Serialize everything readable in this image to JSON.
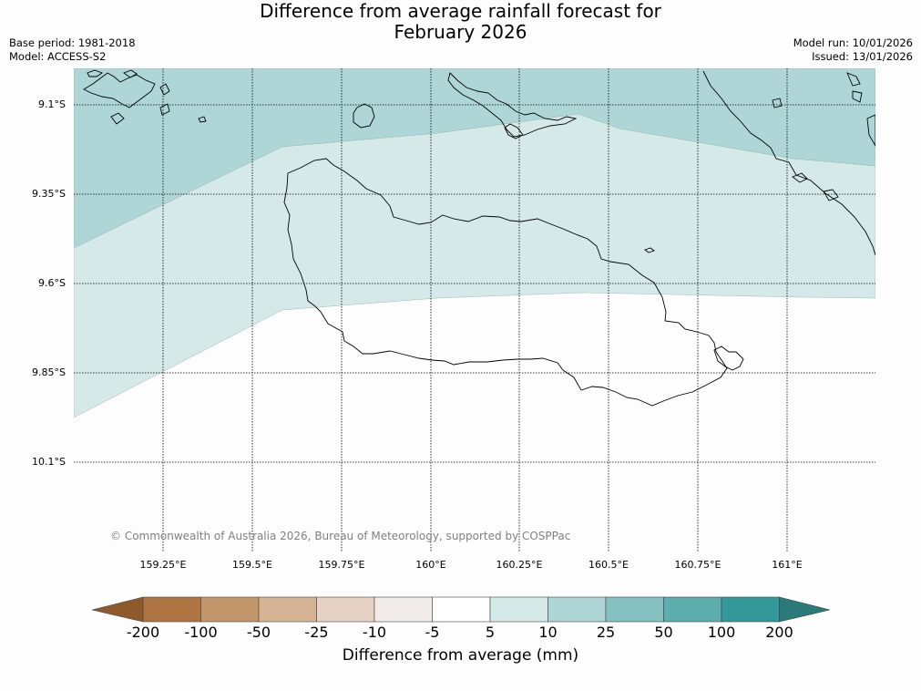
{
  "header": {
    "title_line1": "Difference from average rainfall forecast for",
    "title_line2": "February 2026",
    "base_period": "Base period: 1981-2018",
    "model": "Model: ACCESS-S2",
    "model_run": "Model run: 10/01/2026",
    "issued": "Issued: 13/01/2026"
  },
  "map": {
    "lat_labels": [
      "9.1°S",
      "9.35°S",
      "9.6°S",
      "9.85°S",
      "10.1°S"
    ],
    "lon_labels": [
      "159.25°E",
      "159.5°E",
      "159.75°E",
      "160°E",
      "160.25°E",
      "160.5°E",
      "160.75°E",
      "161°E"
    ],
    "copyright": "© Commonwealth of Australia 2026, Bureau of Meteorology, supported by COSPPac",
    "colors": {
      "band_25_50": "#aed6d6",
      "band_5_10": "#d5e9e9",
      "land_outline": "#000000"
    }
  },
  "colorbar": {
    "ticks": [
      "-200",
      "-100",
      "-50",
      "-25",
      "-10",
      "-5",
      "5",
      "10",
      "25",
      "50",
      "100",
      "200"
    ],
    "colors": [
      "#8e5a2b",
      "#ae7543",
      "#c2966b",
      "#d6b394",
      "#e6d3c4",
      "#f1ece9",
      "#ffffff",
      "#d5e9e9",
      "#aed6d6",
      "#85c1c1",
      "#5caeae",
      "#339999",
      "#2b7a7a"
    ],
    "title": "Difference from average (mm)"
  }
}
